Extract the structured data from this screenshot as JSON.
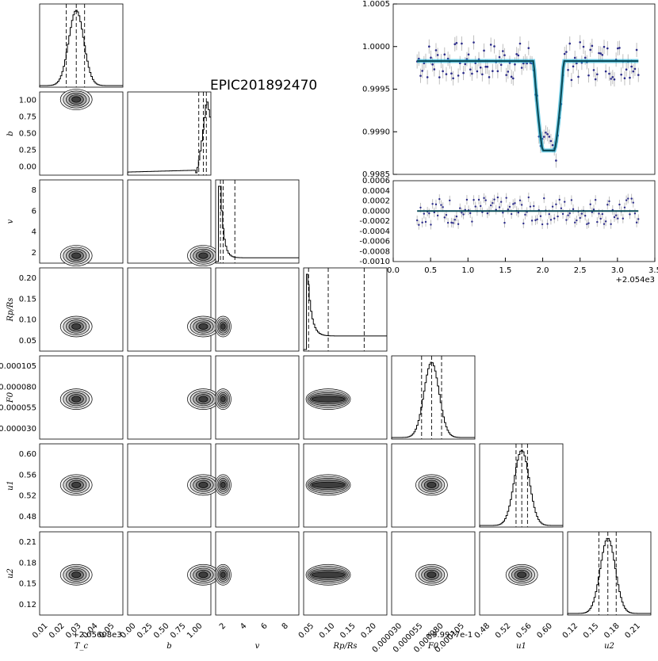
{
  "chart_data": [
    {
      "type": "corner",
      "title": "EPIC201892470",
      "parameters": [
        {
          "name": "T_c",
          "axis_label": "T_c",
          "ticks": [
            "0.01",
            "0.02",
            "0.03",
            "0.04",
            "0.05"
          ],
          "offset": "+2.05608e3",
          "range": [
            0.0,
            0.05
          ],
          "median": 0.022,
          "q_lo": 0.016,
          "q_hi": 0.027
        },
        {
          "name": "b",
          "axis_label": "b",
          "ticks": [
            "0.00",
            "0.25",
            "0.50",
            "0.75",
            "1.00"
          ],
          "range": [
            0.0,
            1.1
          ],
          "median": 1.0,
          "q_lo": 0.94,
          "q_hi": 1.04
        },
        {
          "name": "v",
          "axis_label": "v",
          "ticks": [
            "2",
            "4",
            "6",
            "8"
          ],
          "range": [
            1.2,
            9.0
          ],
          "median": 1.9,
          "q_lo": 1.65,
          "q_hi": 3.0
        },
        {
          "name": "Rp/Rs",
          "axis_label": "Rp/Rs",
          "ticks": [
            "0.05",
            "0.10",
            "0.15",
            "0.20"
          ],
          "range": [
            0.02,
            0.24
          ],
          "median": 0.085,
          "q_lo": 0.033,
          "q_hi": 0.18
        },
        {
          "name": "F0",
          "axis_label": "F0",
          "ticks": [
            "0.000030",
            "0.000055",
            "0.000080",
            "0.000105"
          ],
          "offset": "+9.9977e-1",
          "range": [
            1.5e-05,
            0.000115
          ],
          "median": 6.3e-05,
          "q_lo": 5.1e-05,
          "q_hi": 7.5e-05
        },
        {
          "name": "u1",
          "axis_label": "u1",
          "ticks": [
            "0.48",
            "0.52",
            "0.56",
            "0.60"
          ],
          "range": [
            0.44,
            0.6
          ],
          "median": 0.521,
          "q_lo": 0.51,
          "q_hi": 0.532
        },
        {
          "name": "u2",
          "axis_label": "u2",
          "ticks": [
            "0.12",
            "0.15",
            "0.18",
            "0.21"
          ],
          "range": [
            0.11,
            0.23
          ],
          "median": 0.168,
          "q_lo": 0.155,
          "q_hi": 0.18
        }
      ]
    },
    {
      "type": "scatter",
      "series_name": "light curve with transit model",
      "ylim": [
        0.9985,
        1.0005
      ],
      "yticks": [
        "0.9985",
        "0.9990",
        "0.9995",
        "1.0000",
        "1.0005"
      ],
      "xlim": [
        0.0,
        3.5
      ],
      "baseline": 0.99983,
      "transit_center": 2.08,
      "transit_depth_min": 0.99878
    },
    {
      "type": "scatter",
      "series_name": "residuals",
      "ylim": [
        -0.001,
        0.0006
      ],
      "yticks": [
        "-0.0010",
        "-0.0008",
        "-0.0006",
        "-0.0004",
        "-0.0002",
        "0.0000",
        "0.0002",
        "0.0004",
        "0.0006"
      ],
      "xlim": [
        0.0,
        3.5
      ],
      "xticks": [
        "0.0",
        "0.5",
        "1.0",
        "1.5",
        "2.0",
        "2.5",
        "3.0",
        "3.5"
      ],
      "x_offset": "+2.054e3"
    }
  ]
}
